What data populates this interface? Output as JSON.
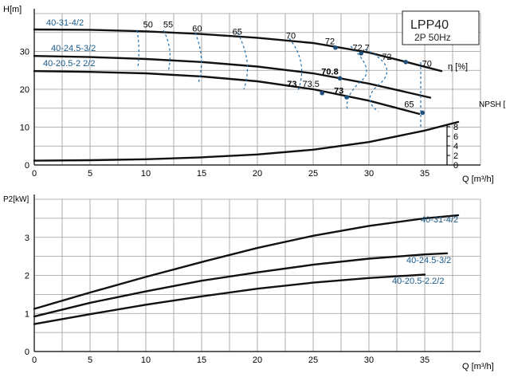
{
  "chart_data": [
    {
      "type": "line",
      "title": "LPP40",
      "subtitle": "2P  50Hz",
      "xlabel": "Q [m³/h]",
      "ylabel": "H[m]",
      "secondary_ylabel": "NPSH [m]",
      "efficiency_axis_label": "η [%]",
      "xlim": [
        0,
        40
      ],
      "ylim": [
        0,
        40
      ],
      "x_ticks": [
        0,
        5,
        10,
        15,
        20,
        25,
        30,
        35
      ],
      "y_ticks": [
        0,
        10,
        20,
        30
      ],
      "npsh_ticks": [
        0,
        2,
        4,
        6,
        8
      ],
      "grid": true,
      "series": [
        {
          "name": "40-31-4/2",
          "color": "#1f6fae",
          "x": [
            0,
            5,
            10,
            15,
            20,
            25,
            30,
            33.5,
            36.5
          ],
          "y": [
            35.8,
            35.7,
            35.3,
            34.6,
            33.6,
            32.2,
            29.7,
            27.1,
            24.8
          ]
        },
        {
          "name": "40-24.5-3/2",
          "color": "#1f6fae",
          "x": [
            0,
            5,
            10,
            15,
            20,
            25,
            30,
            35.5
          ],
          "y": [
            28.8,
            28.5,
            28.0,
            27.2,
            26.0,
            24.2,
            21.5,
            17.8
          ]
        },
        {
          "name": "40-20.5-2 2/2",
          "color": "#1f6fae",
          "x": [
            0,
            5,
            10,
            15,
            20,
            25,
            30,
            34.5
          ],
          "y": [
            24.8,
            24.6,
            24.2,
            23.4,
            22.1,
            20.0,
            17.0,
            13.5
          ]
        },
        {
          "name": "NPSH",
          "color": "#111111",
          "x": [
            0,
            5,
            10,
            15,
            20,
            25,
            30,
            35,
            38
          ],
          "y": [
            0.9,
            1.0,
            1.2,
            1.6,
            2.2,
            3.2,
            4.8,
            7.2,
            9.0
          ]
        }
      ],
      "efficiency_labels": [
        {
          "label": "50",
          "x": 10.2,
          "y": 36.3
        },
        {
          "label": "55",
          "x": 12.0,
          "y": 36.3
        },
        {
          "label": "60",
          "x": 14.6,
          "y": 35.3
        },
        {
          "label": "65",
          "x": 18.2,
          "y": 34.4
        },
        {
          "label": "70",
          "x": 23.0,
          "y": 33.4
        },
        {
          "label": "72",
          "x": 26.5,
          "y": 31.9
        },
        {
          "label": "72.7",
          "x": 29.3,
          "y": 30.2
        },
        {
          "label": "72",
          "x": 31.6,
          "y": 27.8
        },
        {
          "label": "70",
          "x": 35.2,
          "y": 26.0
        },
        {
          "label": "70.8",
          "x": 26.5,
          "y": 23.9
        },
        {
          "label": "73",
          "x": 23.1,
          "y": 20.6
        },
        {
          "label": "73.5",
          "x": 24.8,
          "y": 20.6
        },
        {
          "label": "73",
          "x": 27.3,
          "y": 18.8
        },
        {
          "label": "65",
          "x": 33.6,
          "y": 15.3
        }
      ]
    },
    {
      "type": "line",
      "xlabel": "Q [m³/h]",
      "ylabel": "P2[kW]",
      "xlim": [
        0,
        40
      ],
      "ylim": [
        0,
        4
      ],
      "x_ticks": [
        0,
        5,
        10,
        15,
        20,
        25,
        30,
        35
      ],
      "y_ticks": [
        0,
        1,
        2,
        3
      ],
      "grid": true,
      "series": [
        {
          "name": "40-31-4/2",
          "color": "#1f6fae",
          "x": [
            0,
            5,
            10,
            15,
            20,
            25,
            30,
            35,
            38
          ],
          "y": [
            1.12,
            1.55,
            1.96,
            2.35,
            2.72,
            3.04,
            3.3,
            3.5,
            3.58
          ]
        },
        {
          "name": "40-24.5-3/2",
          "color": "#1f6fae",
          "x": [
            0,
            5,
            10,
            15,
            20,
            25,
            30,
            35,
            37
          ],
          "y": [
            0.92,
            1.28,
            1.58,
            1.86,
            2.08,
            2.28,
            2.44,
            2.55,
            2.58
          ]
        },
        {
          "name": "40-20.5-2.2/2",
          "color": "#1f6fae",
          "x": [
            0,
            5,
            10,
            15,
            20,
            25,
            30,
            35
          ],
          "y": [
            0.72,
            0.98,
            1.23,
            1.45,
            1.65,
            1.81,
            1.93,
            2.02
          ]
        }
      ]
    }
  ]
}
